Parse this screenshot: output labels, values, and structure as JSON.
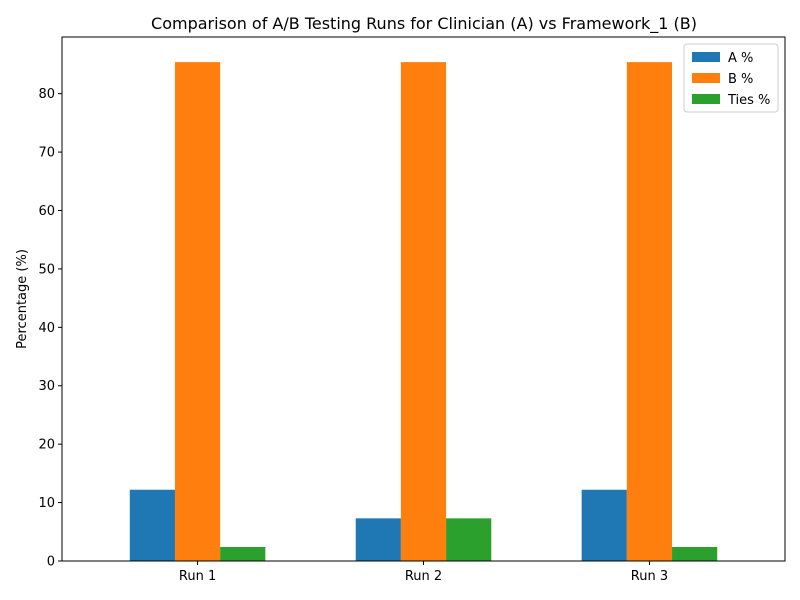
{
  "chart_data": {
    "type": "bar",
    "title": "Comparison of A/B Testing Runs for Clinician (A) vs Framework_1 (B)",
    "xlabel": "",
    "ylabel": "Percentage (%)",
    "categories": [
      "Run 1",
      "Run 2",
      "Run 3"
    ],
    "series": [
      {
        "name": "A %",
        "values": [
          12.2,
          7.3,
          12.2
        ],
        "color": "#1f77b4"
      },
      {
        "name": "B %",
        "values": [
          85.4,
          85.4,
          85.4
        ],
        "color": "#ff7f0e"
      },
      {
        "name": "Ties %",
        "values": [
          2.4,
          7.3,
          2.4
        ],
        "color": "#2ca02c"
      }
    ],
    "ylim": [
      0,
      89.7
    ],
    "yticks": [
      0,
      10,
      20,
      30,
      40,
      50,
      60,
      70,
      80
    ],
    "grid": false,
    "legend_position": "top-right"
  }
}
